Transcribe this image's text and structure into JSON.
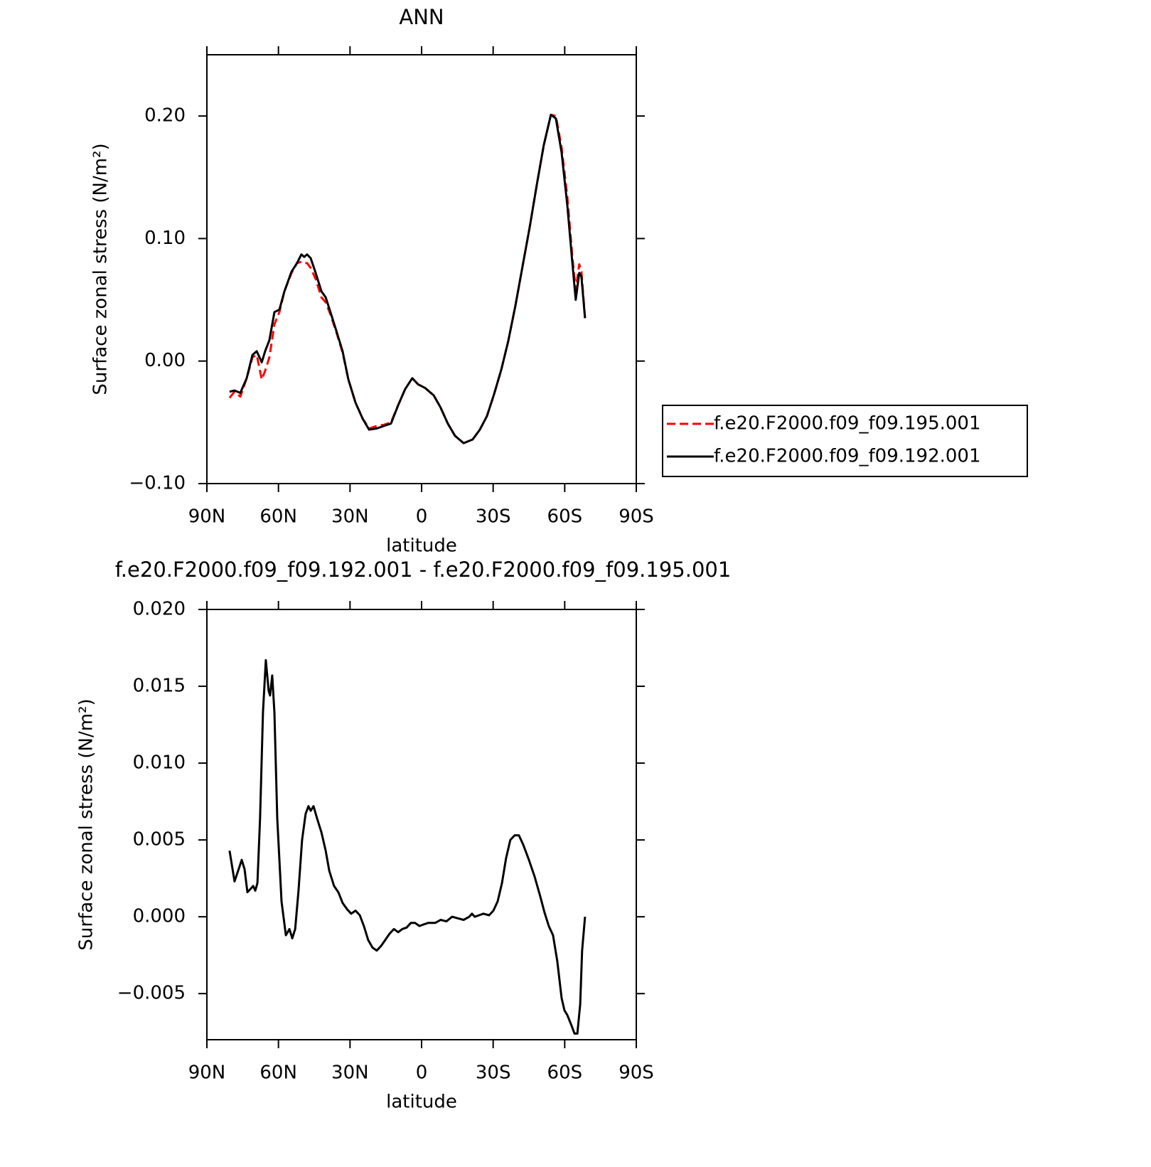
{
  "chart_data": [
    {
      "type": "line",
      "title": "ANN",
      "xlabel": "latitude",
      "ylabel": "Surface zonal stress (N/m²)",
      "legend": "right",
      "x": [
        80.5,
        78.4,
        76,
        73.3,
        70.9,
        69.1,
        67,
        65.6,
        63.8,
        61.7,
        59.6,
        57.5,
        54.5,
        52.2,
        50.4,
        49.2,
        48,
        46.5,
        44.4,
        42,
        40.2,
        38.2,
        35.8,
        33.1,
        30.7,
        27.7,
        24.7,
        22,
        18.8,
        15.8,
        12.8,
        9.8,
        6.9,
        3.9,
        1.5,
        -1.5,
        -5.1,
        -8,
        -11,
        -14,
        -17.6,
        -21.4,
        -24.4,
        -27.4,
        -30.4,
        -33.4,
        -36.3,
        -39.3,
        -42.3,
        -45.3,
        -48.3,
        -51.2,
        -54.2,
        -56.3,
        -58.7,
        -61.1,
        -63.2,
        -64.6,
        -66.1,
        -67,
        -68.5
      ],
      "series": [
        {
          "name": "f.e20.F2000.f09_f09.195.001",
          "color": "#ff0000",
          "dash": "dashed",
          "values": [
            -0.03,
            -0.025,
            -0.029,
            -0.014,
            0.003,
            0.005,
            -0.015,
            -0.008,
            0.003,
            0.03,
            0.04,
            0.057,
            0.072,
            0.08,
            0.081,
            0.08,
            0.08,
            0.076,
            0.067,
            0.052,
            0.048,
            0.038,
            0.024,
            0.007,
            -0.015,
            -0.034,
            -0.047,
            -0.055,
            -0.053,
            -0.052,
            -0.05,
            -0.036,
            -0.023,
            -0.014,
            -0.019,
            -0.022,
            -0.028,
            -0.038,
            -0.051,
            -0.061,
            -0.067,
            -0.064,
            -0.056,
            -0.045,
            -0.027,
            -0.007,
            0.016,
            0.045,
            0.077,
            0.109,
            0.144,
            0.176,
            0.201,
            0.2,
            0.174,
            0.134,
            0.085,
            0.058,
            0.079,
            0.073,
            0.035
          ]
        },
        {
          "name": "f.e20.F2000.f09_f09.192.001",
          "color": "#000000",
          "dash": "solid",
          "values": [
            -0.025,
            -0.024,
            -0.026,
            -0.014,
            0.005,
            0.008,
            -0.001,
            0.008,
            0.017,
            0.04,
            0.042,
            0.057,
            0.073,
            0.08,
            0.087,
            0.085,
            0.087,
            0.084,
            0.072,
            0.057,
            0.052,
            0.04,
            0.025,
            0.008,
            -0.015,
            -0.034,
            -0.047,
            -0.056,
            -0.055,
            -0.053,
            -0.051,
            -0.036,
            -0.023,
            -0.014,
            -0.019,
            -0.022,
            -0.028,
            -0.038,
            -0.051,
            -0.061,
            -0.067,
            -0.064,
            -0.056,
            -0.045,
            -0.027,
            -0.007,
            0.016,
            0.045,
            0.077,
            0.109,
            0.144,
            0.176,
            0.201,
            0.198,
            0.17,
            0.127,
            0.08,
            0.05,
            0.072,
            0.069,
            0.035
          ]
        }
      ],
      "xlim": [
        90,
        -90
      ],
      "ylim": [
        -0.1,
        0.25
      ],
      "xticks": [
        {
          "value": 90,
          "label": "90N"
        },
        {
          "value": 60,
          "label": "60N"
        },
        {
          "value": 30,
          "label": "30N"
        },
        0,
        {
          "value": -30,
          "label": "30S"
        },
        {
          "value": -60,
          "label": "60S"
        },
        {
          "value": -90,
          "label": "90S"
        }
      ],
      "yticks": [
        {
          "value": -0.1,
          "label": "−0.10"
        },
        {
          "value": 0,
          "label": "0.00"
        },
        {
          "value": 0.1,
          "label": "0.10"
        },
        {
          "value": 0.2,
          "label": "0.20"
        }
      ]
    },
    {
      "type": "line",
      "title": "f.e20.F2000.f09_f09.192.001 - f.e20.F2000.f09_f09.195.001",
      "xlabel": "latitude",
      "ylabel": "Surface zonal stress (N/m²)",
      "x": [
        80.5,
        78.4,
        76.9,
        75.4,
        74.2,
        73,
        71.8,
        70.6,
        69.7,
        68.8,
        67.7,
        66.5,
        65.3,
        64.1,
        63.5,
        62.6,
        61.7,
        60.5,
        58.7,
        56.9,
        55.4,
        54.2,
        53,
        51.6,
        50.1,
        48.6,
        47.4,
        46.5,
        45.3,
        43.8,
        42,
        40.2,
        38.7,
        36.7,
        34.9,
        33.1,
        31.3,
        29.5,
        27.7,
        25.9,
        24.2,
        22.4,
        20.6,
        18.8,
        17,
        15.2,
        13.4,
        11.6,
        9.8,
        8.1,
        6.3,
        4.5,
        2.7,
        0.9,
        -0.9,
        -2.7,
        -5.7,
        -8,
        -10.4,
        -12.8,
        -15.2,
        -17.6,
        -20,
        -21.1,
        -22.3,
        -24.1,
        -25.9,
        -28.3,
        -30.1,
        -31.9,
        -33.7,
        -35.4,
        -37.2,
        -39,
        -40.8,
        -42.6,
        -45,
        -47.4,
        -49.8,
        -51.5,
        -53.3,
        -55.1,
        -56.9,
        -58.7,
        -59.9,
        -61.1,
        -62.9,
        -64.1,
        -65.3,
        -66.5,
        -67.3,
        -68.5
      ],
      "series": [
        {
          "name": null,
          "color": "#000000",
          "dash": "solid",
          "values": [
            0.0043,
            0.0023,
            0.003,
            0.0037,
            0.0031,
            0.0016,
            0.0018,
            0.002,
            0.0017,
            0.0022,
            0.0064,
            0.0133,
            0.0167,
            0.0147,
            0.0144,
            0.0157,
            0.0133,
            0.0064,
            0.001,
            -0.0012,
            -0.0008,
            -0.0014,
            -0.0008,
            0.0017,
            0.005,
            0.0067,
            0.0072,
            0.0069,
            0.0072,
            0.0064,
            0.0055,
            0.0043,
            0.003,
            0.002,
            0.0016,
            0.0009,
            0.0005,
            0.0002,
            0.0004,
            0.0001,
            -0.0006,
            -0.0015,
            -0.002,
            -0.0022,
            -0.0019,
            -0.0015,
            -0.0011,
            -0.0008,
            -0.001,
            -0.0008,
            -0.0007,
            -0.0004,
            -0.0004,
            -0.0006,
            -0.0005,
            -0.0004,
            -0.0004,
            -0.0002,
            -0.0003,
            0.0,
            -0.0001,
            -0.0002,
            0.0,
            0.0002,
            0.0,
            0.0001,
            0.0002,
            0.0001,
            0.0004,
            0.001,
            0.0022,
            0.0038,
            0.005,
            0.0053,
            0.0053,
            0.0047,
            0.0037,
            0.0026,
            0.0013,
            0.0003,
            -0.0006,
            -0.0012,
            -0.0029,
            -0.0053,
            -0.0061,
            -0.0064,
            -0.0071,
            -0.0076,
            -0.0076,
            -0.0057,
            -0.0022,
            0.0
          ]
        }
      ],
      "xlim": [
        90,
        -90
      ],
      "ylim": [
        -0.008,
        0.02
      ],
      "xticks": [
        {
          "value": 90,
          "label": "90N"
        },
        {
          "value": 60,
          "label": "60N"
        },
        {
          "value": 30,
          "label": "30N"
        },
        0,
        {
          "value": -30,
          "label": "30S"
        },
        {
          "value": -60,
          "label": "60S"
        },
        {
          "value": -90,
          "label": "90S"
        }
      ],
      "yticks": [
        {
          "value": -0.005,
          "label": "−0.005"
        },
        {
          "value": 0,
          "label": "0.000"
        },
        {
          "value": 0.005,
          "label": "0.005"
        },
        {
          "value": 0.01,
          "label": "0.010"
        },
        {
          "value": 0.015,
          "label": "0.015"
        },
        {
          "value": 0.02,
          "label": "0.020"
        }
      ]
    }
  ]
}
